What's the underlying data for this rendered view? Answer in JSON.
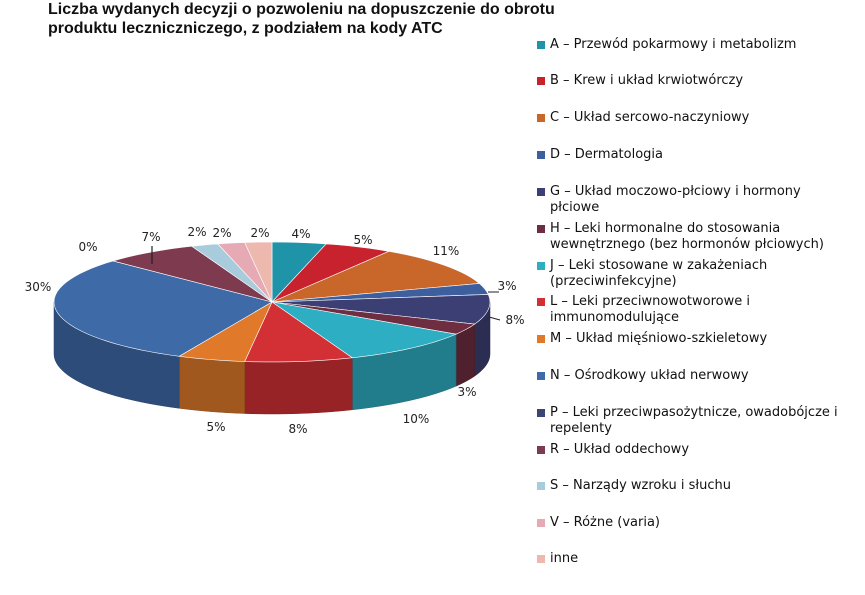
{
  "chart_data": {
    "type": "pie",
    "title_lines": [
      "Liczba wydanych decyzji o pozwoleniu na dopuszczenie do obrotu",
      "produktu leczniczniczego, z podziałem na kody ATC"
    ],
    "slices": [
      {
        "name": "A – Przewód pokarmowy i metabolizm",
        "value": 4,
        "label": "4%",
        "color": "#1f93a7"
      },
      {
        "name": "B – Krew i układ krwiotwórczy",
        "value": 5,
        "label": "5%",
        "color": "#c8222e"
      },
      {
        "name": "C –  Układ sercowo-naczyniowy",
        "value": 11,
        "label": "11%",
        "color": "#c9662a"
      },
      {
        "name": "D – Dermatologia",
        "value": 3,
        "label": "3%",
        "color": "#3d5f9e"
      },
      {
        "name": "G – Układ moczowo-płciowy i hormony płciowe",
        "value": 8,
        "label": "8%",
        "color": "#3c3f73"
      },
      {
        "name": "H – Leki hormonalne do stosowania wewnętrznego (bez hormonów płciowych)",
        "value": 3,
        "label": "3%",
        "color": "#6e2d40"
      },
      {
        "name": "J – Leki stosowane w zakażeniach (przeciwinfekcyjne)",
        "value": 10,
        "label": "10%",
        "color": "#2eaec2"
      },
      {
        "name": "L – Leki przeciwnowotworowe i immunomodulujące",
        "value": 8,
        "label": "8%",
        "color": "#d33035"
      },
      {
        "name": "M – Układ mięśniowo-szkieletowy",
        "value": 5,
        "label": "5%",
        "color": "#e07a2a"
      },
      {
        "name": "N – Ośrodkowy układ nerwowy",
        "value": 30,
        "label": "30%",
        "color": "#3f6aa8"
      },
      {
        "name": "P – Leki przeciwpasożytnicze, owadobójcze i repelenty",
        "value": 0,
        "label": "0%",
        "color": "#3b4574"
      },
      {
        "name": "R – Układ oddechowy",
        "value": 7,
        "label": "7%",
        "color": "#7e3a4e"
      },
      {
        "name": "S – Narządy wzroku i słuchu",
        "value": 2,
        "label": "2%",
        "color": "#a9ccdc"
      },
      {
        "name": "V – Różne (varia)",
        "value": 2,
        "label": "2%",
        "color": "#e6aab5"
      },
      {
        "name": "inne",
        "value": 2,
        "label": "2%",
        "color": "#edb8ae"
      }
    ]
  }
}
